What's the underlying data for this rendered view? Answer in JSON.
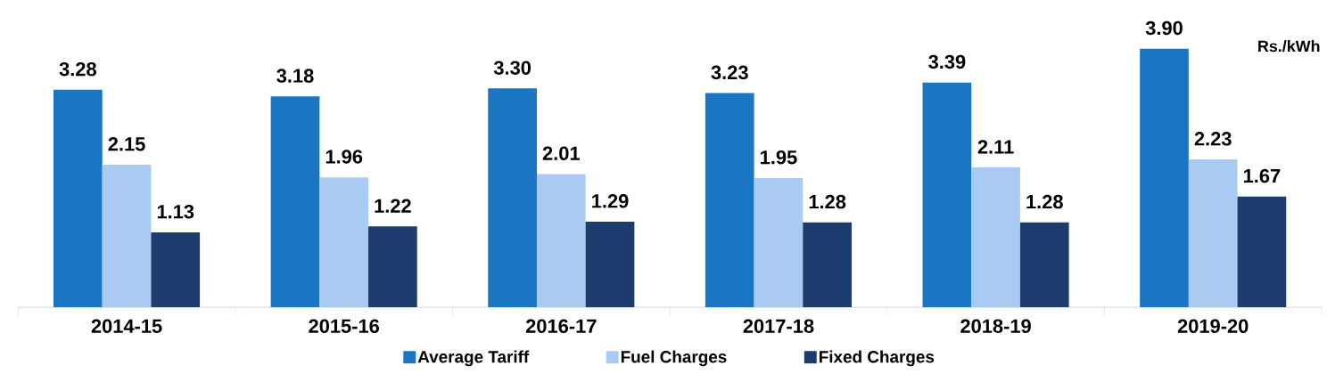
{
  "chart_data": {
    "type": "bar",
    "ylabel": "Rs./kWh",
    "categories": [
      "2014-15",
      "2015-16",
      "2016-17",
      "2017-18",
      "2018-19",
      "2019-20"
    ],
    "series": [
      {
        "name": "Average Tariff",
        "color": "#1a75c2",
        "values": [
          3.28,
          3.18,
          3.3,
          3.23,
          3.39,
          3.9
        ],
        "value_labels": [
          "3.28",
          "3.18",
          "3.30",
          "3.23",
          "3.39",
          "3.90"
        ]
      },
      {
        "name": "Fuel Charges",
        "color": "#a9cbf2",
        "values": [
          2.15,
          1.96,
          2.01,
          1.95,
          2.11,
          2.23
        ],
        "value_labels": [
          "2.15",
          "1.96",
          "2.01",
          "1.95",
          "2.11",
          "2.23"
        ]
      },
      {
        "name": "Fixed Charges",
        "color": "#1c3c6e",
        "values": [
          1.13,
          1.22,
          1.29,
          1.28,
          1.28,
          1.67
        ],
        "value_labels": [
          "1.13",
          "1.22",
          "1.29",
          "1.28",
          "1.28",
          "1.67"
        ]
      }
    ],
    "legend": "bottom",
    "grid": false
  }
}
